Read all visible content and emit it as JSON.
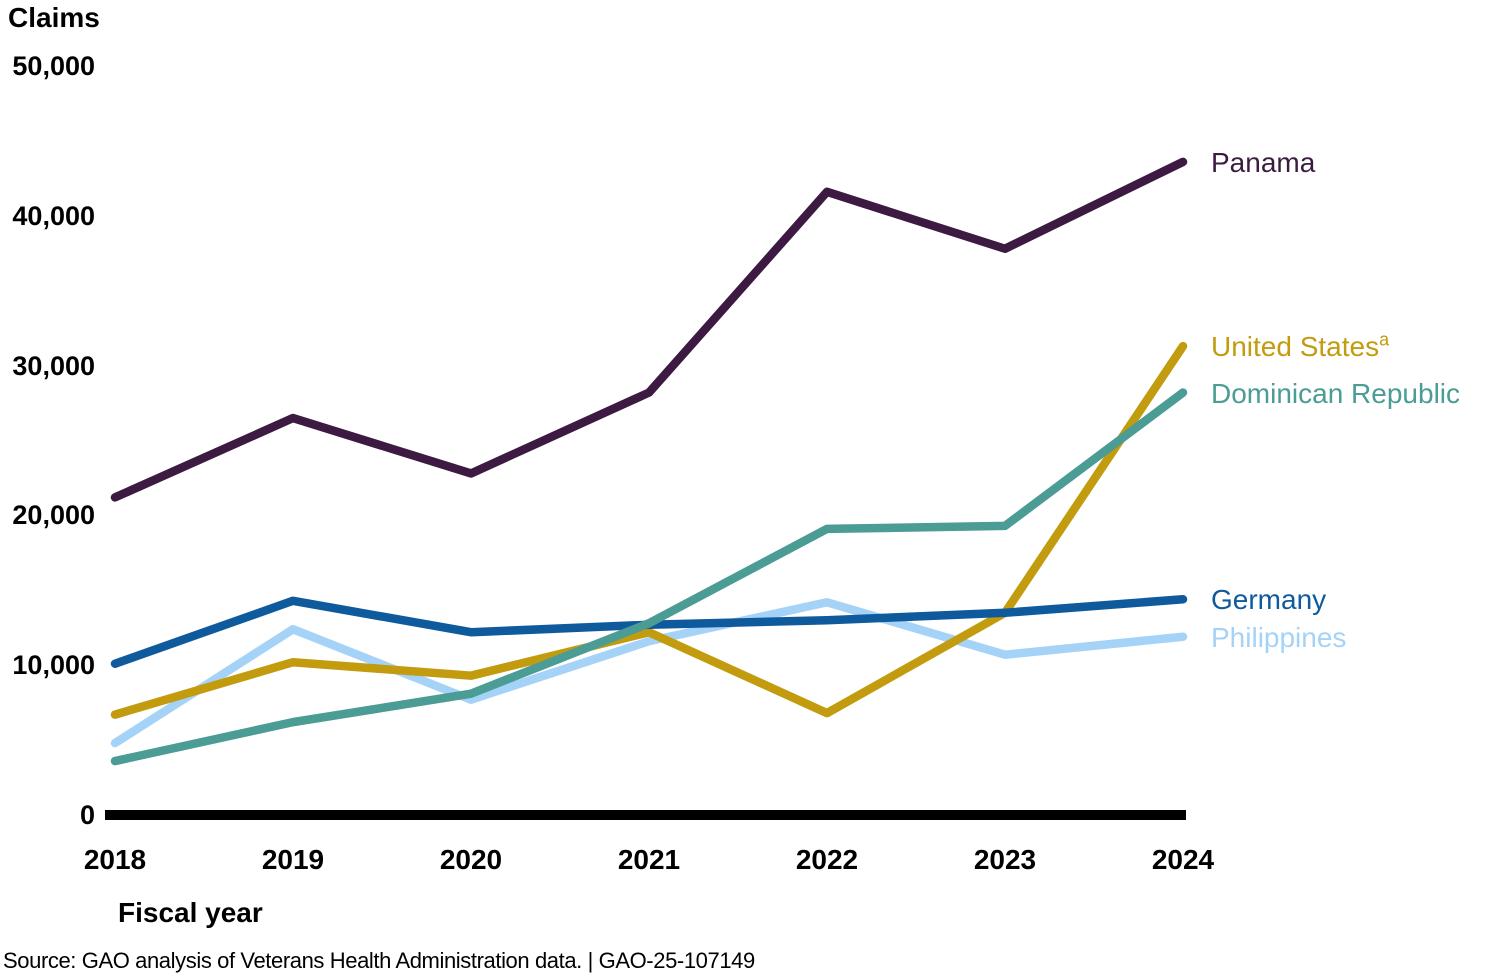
{
  "chart_data": {
    "type": "line",
    "title": "Claims",
    "xlabel": "Fiscal year",
    "x": [
      2018,
      2019,
      2020,
      2021,
      2022,
      2023,
      2024
    ],
    "x_labels": [
      "2018",
      "2019",
      "2020",
      "2021",
      "2022",
      "2023",
      "2024"
    ],
    "ylim": [
      0,
      50000
    ],
    "yticks": [
      {
        "value": 0,
        "label": "0"
      },
      {
        "value": 10000,
        "label": "10,000"
      },
      {
        "value": 20000,
        "label": "20,000"
      },
      {
        "value": 30000,
        "label": "30,000"
      },
      {
        "value": 40000,
        "label": "40,000"
      },
      {
        "value": 50000,
        "label": "50,000"
      }
    ],
    "grid": false,
    "legend_position": "line-end-labels-right",
    "series": [
      {
        "name": "Panama",
        "label": "Panama",
        "superscript": "",
        "color": "#3C1A42",
        "values": [
          21200,
          26500,
          22800,
          28200,
          41600,
          37800,
          43600
        ]
      },
      {
        "name": "United States",
        "label": "United States",
        "superscript": "a",
        "color": "#C29B0E",
        "values": [
          6700,
          10200,
          9300,
          12200,
          6800,
          13500,
          31300
        ]
      },
      {
        "name": "Dominican Republic",
        "label": "Dominican Republic",
        "superscript": "",
        "color": "#4A9C94",
        "values": [
          3600,
          6200,
          8100,
          12800,
          19100,
          19300,
          28200
        ]
      },
      {
        "name": "Germany",
        "label": "Germany",
        "superscript": "",
        "color": "#0F5A9C",
        "values": [
          10100,
          14300,
          12200,
          12700,
          13000,
          13500,
          14400
        ]
      },
      {
        "name": "Philippines",
        "label": "Philippines",
        "superscript": "",
        "color": "#A5D3F8",
        "values": [
          4800,
          12400,
          7700,
          11600,
          14200,
          10700,
          11900
        ]
      }
    ],
    "draw_order": [
      "Philippines",
      "United States",
      "Germany",
      "Dominican Republic",
      "Panama"
    ]
  },
  "source": {
    "text": "Source: GAO analysis of Veterans Health Administration data.  |  GAO-25-107149"
  }
}
